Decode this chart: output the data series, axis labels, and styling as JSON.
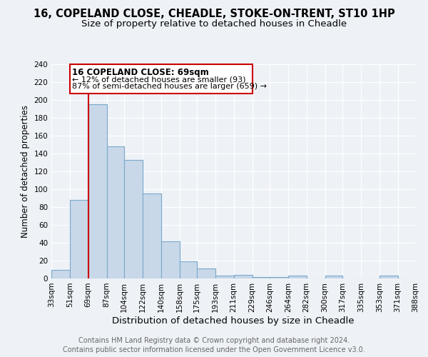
{
  "title": "16, COPELAND CLOSE, CHEADLE, STOKE-ON-TRENT, ST10 1HP",
  "subtitle": "Size of property relative to detached houses in Cheadle",
  "xlabel": "Distribution of detached houses by size in Cheadle",
  "ylabel": "Number of detached properties",
  "bar_edges": [
    33,
    51,
    69,
    87,
    104,
    122,
    140,
    158,
    175,
    193,
    211,
    229,
    246,
    264,
    282,
    300,
    317,
    335,
    353,
    371,
    388
  ],
  "bar_heights": [
    10,
    88,
    195,
    148,
    133,
    95,
    42,
    19,
    11,
    3,
    4,
    2,
    2,
    3,
    0,
    3,
    0,
    0,
    3,
    0
  ],
  "bar_color": "#c8d8e8",
  "bar_edge_color": "#7aa8cc",
  "vline_x": 69,
  "vline_color": "#cc0000",
  "ylim": [
    0,
    240
  ],
  "yticks": [
    0,
    20,
    40,
    60,
    80,
    100,
    120,
    140,
    160,
    180,
    200,
    220,
    240
  ],
  "xtick_labels": [
    "33sqm",
    "51sqm",
    "69sqm",
    "87sqm",
    "104sqm",
    "122sqm",
    "140sqm",
    "158sqm",
    "175sqm",
    "193sqm",
    "211sqm",
    "229sqm",
    "246sqm",
    "264sqm",
    "282sqm",
    "300sqm",
    "317sqm",
    "335sqm",
    "353sqm",
    "371sqm",
    "388sqm"
  ],
  "annotation_title": "16 COPELAND CLOSE: 69sqm",
  "annotation_line1": "← 12% of detached houses are smaller (93)",
  "annotation_line2": "87% of semi-detached houses are larger (659) →",
  "annotation_box_color": "#cc0000",
  "footer_line1": "Contains HM Land Registry data © Crown copyright and database right 2024.",
  "footer_line2": "Contains public sector information licensed under the Open Government Licence v3.0.",
  "bg_color": "#eef2f7",
  "grid_color": "#ffffff",
  "title_fontsize": 10.5,
  "subtitle_fontsize": 9.5,
  "xlabel_fontsize": 9.5,
  "ylabel_fontsize": 8.5,
  "tick_fontsize": 7.5,
  "annotation_title_fontsize": 8.5,
  "annotation_text_fontsize": 8.0,
  "footer_fontsize": 7.0
}
